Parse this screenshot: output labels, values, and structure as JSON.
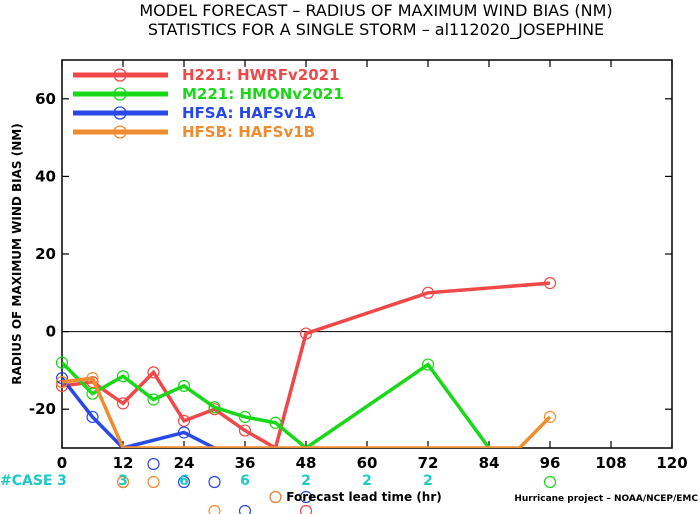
{
  "chart_data": {
    "type": "line",
    "title": "MODEL FORECAST – RADIUS OF MAXIMUM WIND BIAS (NM)",
    "subtitle": "STATISTICS FOR A SINGLE STORM – al112020_JOSEPHINE",
    "xlabel": "Forecast lead time (hr)",
    "ylabel": "RADIUS OF MAXIMUM WIND BIAS (NM)",
    "xlim": [
      0,
      120
    ],
    "ylim": [
      -30,
      70
    ],
    "xticks": [
      "0",
      "12",
      "24",
      "36",
      "48",
      "60",
      "72",
      "84",
      "96",
      "108",
      "120"
    ],
    "yticks": [
      "-20",
      "0",
      "20",
      "40",
      "60"
    ],
    "legend_position": "top-left",
    "zero_line": true,
    "series": [
      {
        "name": "H221: HWRFv2021",
        "color": "#f04848",
        "x": [
          0,
          6,
          12,
          18,
          24,
          30,
          36,
          42,
          48,
          72,
          96
        ],
        "y": [
          -14,
          -13,
          -18.5,
          -10.5,
          -23,
          -20,
          -25.5,
          -30,
          -0.5,
          10,
          12.5
        ]
      },
      {
        "name": "M221: HMONv2021",
        "color": "#18d818",
        "x": [
          0,
          6,
          12,
          18,
          24,
          30,
          36,
          42,
          48,
          72,
          84
        ],
        "y": [
          -8,
          -16,
          -11.5,
          -17.5,
          -14,
          -19.5,
          -22,
          -23.5,
          -30,
          -8.5,
          -30
        ]
      },
      {
        "name": "HFSA: HAFSv1A",
        "color": "#2848e8",
        "x": [
          0,
          6,
          12,
          24,
          30
        ],
        "y": [
          -12,
          -22,
          -30,
          -26,
          -30
        ]
      },
      {
        "name": "HFSB: HAFSv1B",
        "color": "#f08c30",
        "x": [
          0,
          6,
          12,
          90,
          96
        ],
        "y": [
          -13,
          -12,
          -30,
          -30,
          -22
        ]
      }
    ],
    "offscale_markers": [
      {
        "series": 0,
        "x": 12,
        "row": 1
      },
      {
        "series": 0,
        "x": 48,
        "row": 3
      },
      {
        "series": 1,
        "x": 96,
        "row": 1
      },
      {
        "series": 2,
        "x": 18,
        "row": 0
      },
      {
        "series": 2,
        "x": 24,
        "row": 1
      },
      {
        "series": 2,
        "x": 30,
        "row": 1
      },
      {
        "series": 2,
        "x": 42,
        "row": 2
      },
      {
        "series": 2,
        "x": 48,
        "row": 2
      },
      {
        "series": 2,
        "x": 36,
        "row": 3
      },
      {
        "series": 3,
        "x": 12,
        "row": 1
      },
      {
        "series": 3,
        "x": 18,
        "row": 1
      },
      {
        "series": 3,
        "x": 42,
        "row": 2
      },
      {
        "series": 3,
        "x": 30,
        "row": 3
      }
    ],
    "case_counts": {
      "label": "#CASE",
      "x": [
        0,
        12,
        24,
        36,
        48,
        60,
        72
      ],
      "values": [
        "3",
        "3",
        "6",
        "6",
        "2",
        "2",
        "2"
      ]
    },
    "credit": "Hurricane project – NOAA/NCEP/EMC"
  }
}
